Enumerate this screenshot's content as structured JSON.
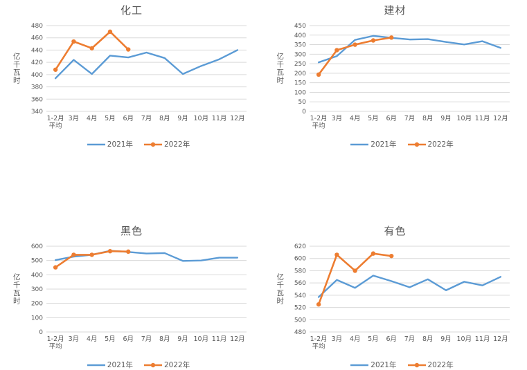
{
  "colors": {
    "series_2021": "#5B9BD5",
    "series_2022": "#ED7D31",
    "gridline": "#D9D9D9",
    "text": "#595959"
  },
  "chart_data": [
    {
      "type": "line",
      "title": "化工",
      "ylabel": "亿千瓦时",
      "xlabel": "",
      "ylim": [
        340,
        480
      ],
      "yticks": [
        340,
        360,
        380,
        400,
        420,
        440,
        460,
        480
      ],
      "grid": true,
      "legend_position": "bottom",
      "categories": [
        [
          "1-2月",
          "平均"
        ],
        "3月",
        "4月",
        "5月",
        "6月",
        "7月",
        "8月",
        "9月",
        "10月",
        "11月",
        "12月"
      ],
      "series": [
        {
          "name": "2021年",
          "color": "#5B9BD5",
          "marker": false,
          "values": [
            394,
            424,
            401,
            431,
            428,
            436,
            427,
            401,
            414,
            425,
            440
          ]
        },
        {
          "name": "2022年",
          "color": "#ED7D31",
          "marker": true,
          "values": [
            408,
            454,
            443,
            470,
            441
          ]
        }
      ]
    },
    {
      "type": "line",
      "title": "建材",
      "ylabel": "亿千瓦时",
      "xlabel": "",
      "ylim": [
        0,
        450
      ],
      "yticks": [
        0,
        50,
        100,
        150,
        200,
        250,
        300,
        350,
        400,
        450
      ],
      "grid": true,
      "legend_position": "bottom",
      "categories": [
        [
          "1-2月",
          "平均"
        ],
        "3月",
        "4月",
        "5月",
        "6月",
        "7月",
        "8月",
        "9月",
        "10月",
        "11月",
        "12月"
      ],
      "series": [
        {
          "name": "2021年",
          "color": "#5B9BD5",
          "marker": false,
          "values": [
            257,
            290,
            375,
            396,
            386,
            377,
            379,
            364,
            351,
            368,
            333
          ]
        },
        {
          "name": "2022年",
          "color": "#ED7D31",
          "marker": true,
          "values": [
            193,
            321,
            350,
            372,
            387
          ]
        }
      ]
    },
    {
      "type": "line",
      "title": "黑色",
      "ylabel": "亿千瓦时",
      "xlabel": "",
      "ylim": [
        0,
        600
      ],
      "yticks": [
        0,
        100,
        200,
        300,
        400,
        500,
        600
      ],
      "grid": true,
      "legend_position": "bottom",
      "categories": [
        [
          "1-2月",
          "平均"
        ],
        "3月",
        "4月",
        "5月",
        "6月",
        "7月",
        "8月",
        "9月",
        "10月",
        "11月",
        "12月"
      ],
      "series": [
        {
          "name": "2021年",
          "color": "#5B9BD5",
          "marker": false,
          "values": [
            503,
            527,
            540,
            568,
            560,
            549,
            552,
            497,
            500,
            520,
            520
          ]
        },
        {
          "name": "2022年",
          "color": "#ED7D31",
          "marker": true,
          "values": [
            452,
            540,
            540,
            565,
            562
          ]
        }
      ]
    },
    {
      "type": "line",
      "title": "有色",
      "ylabel": "亿千瓦时",
      "xlabel": "",
      "ylim": [
        480,
        620
      ],
      "yticks": [
        480,
        500,
        520,
        540,
        560,
        580,
        600,
        620
      ],
      "grid": true,
      "legend_position": "bottom",
      "categories": [
        [
          "1-2月",
          "平均"
        ],
        "3月",
        "4月",
        "5月",
        "6月",
        "7月",
        "8月",
        "9月",
        "10月",
        "11月",
        "12月"
      ],
      "series": [
        {
          "name": "2021年",
          "color": "#5B9BD5",
          "marker": false,
          "values": [
            537,
            565,
            552,
            572,
            563,
            553,
            566,
            548,
            562,
            556,
            570
          ]
        },
        {
          "name": "2022年",
          "color": "#ED7D31",
          "marker": true,
          "values": [
            525,
            606,
            580,
            608,
            604
          ]
        }
      ]
    }
  ]
}
